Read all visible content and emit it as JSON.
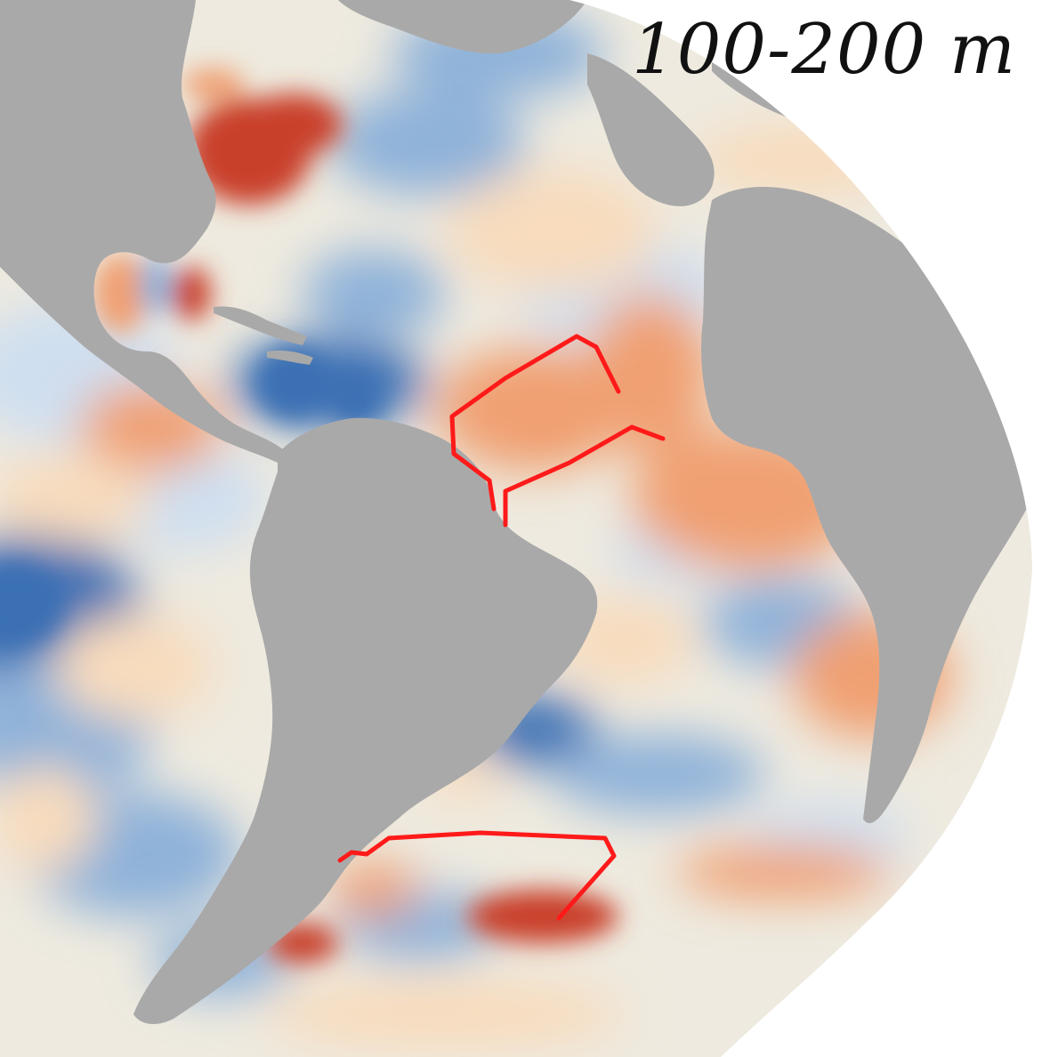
{
  "map": {
    "depth_label": "100-200 m",
    "colors": {
      "background": "#ffffff",
      "ocean_neutral": "#eeeadf",
      "land": "#a9a9a9",
      "warm_strong": "#c9402c",
      "warm_mid": "#f0a072",
      "warm_light": "#f8dcbd",
      "cool_light": "#cfdff0",
      "cool_mid": "#8fb2d9",
      "cool_strong": "#3b6fb4",
      "track": "#ff1a1a"
    }
  }
}
